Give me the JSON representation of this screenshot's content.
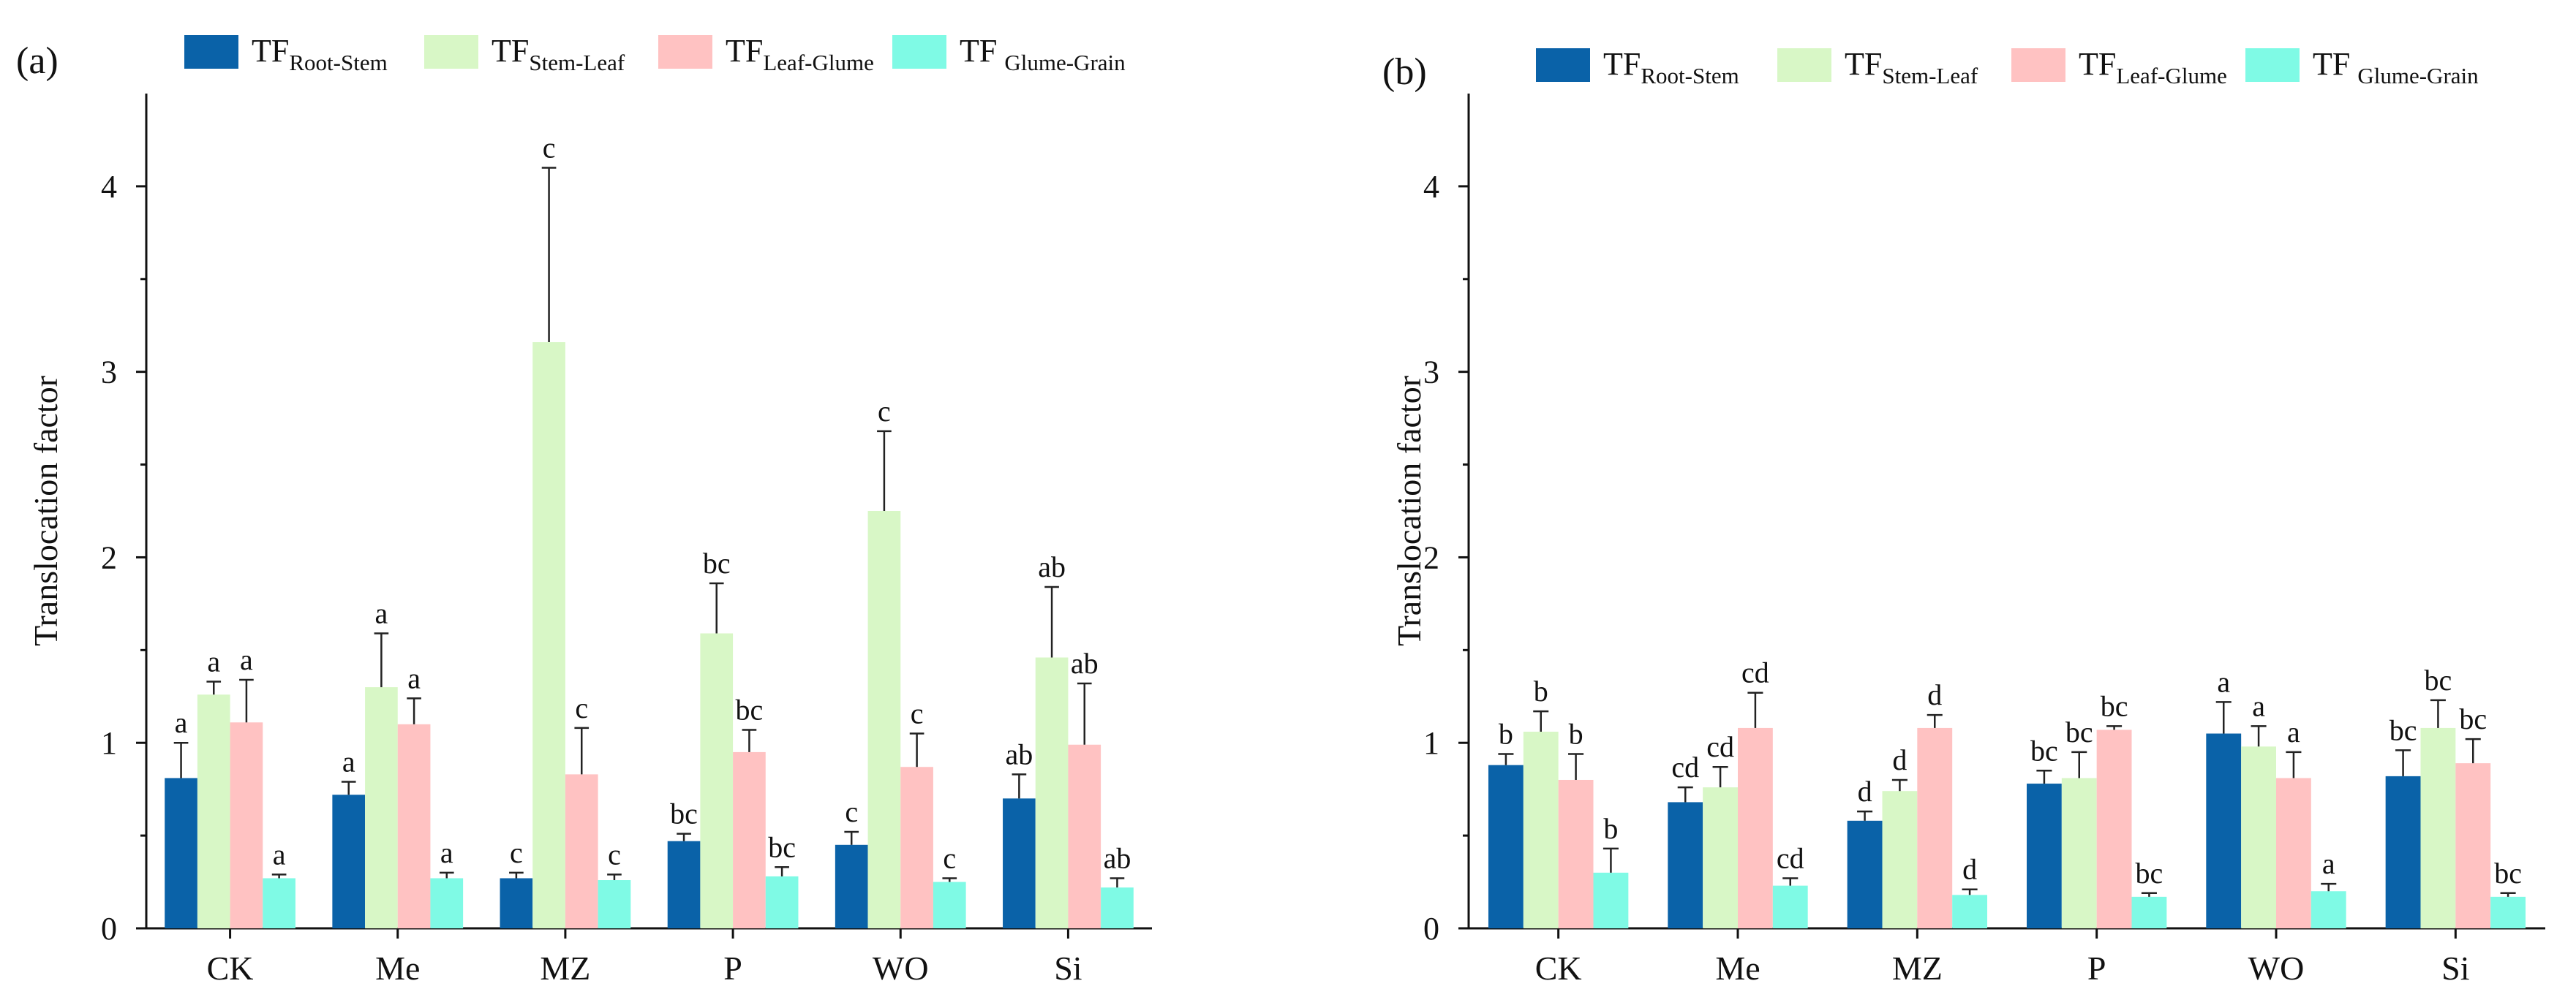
{
  "colors": {
    "root_stem": "#0A62A8",
    "stem_leaf": "#D8F7C6",
    "leaf_glume": "#FFC2C2",
    "glume_grain": "#7FFAE5",
    "axis": "#111111"
  },
  "chart_data": [
    {
      "type": "bar",
      "panel_label": "(a)",
      "ylabel": "Translocation factor",
      "xlabel": "",
      "ylim": [
        0,
        4.5
      ],
      "yticks": [
        "0",
        "1",
        "2",
        "3",
        "4"
      ],
      "categories": [
        "CK",
        "Me",
        "MZ",
        "P",
        "WO",
        "Si"
      ],
      "legend": [
        {
          "prefix": "TF",
          "sub": "Root-Stem",
          "color_key": "root_stem"
        },
        {
          "prefix": "TF",
          "sub": "Stem-Leaf",
          "color_key": "stem_leaf"
        },
        {
          "prefix": "TF",
          "sub": "Leaf-Glume",
          "color_key": "leaf_glume"
        },
        {
          "prefix": "TF",
          "sub": "Glume-Grain",
          "color_key": "glume_grain"
        }
      ],
      "series": [
        {
          "name": "TF Root-Stem",
          "color_key": "root_stem",
          "values": [
            0.81,
            0.72,
            0.27,
            0.47,
            0.45,
            0.7
          ],
          "errors": [
            0.19,
            0.07,
            0.03,
            0.04,
            0.07,
            0.13
          ],
          "labels": [
            "a",
            "a",
            "c",
            "bc",
            "c",
            "ab"
          ]
        },
        {
          "name": "TF Stem-Leaf",
          "color_key": "stem_leaf",
          "values": [
            1.26,
            1.3,
            3.16,
            1.59,
            2.25,
            1.46
          ],
          "errors": [
            0.07,
            0.29,
            0.94,
            0.27,
            0.43,
            0.38
          ],
          "labels": [
            "a",
            "a",
            "c",
            "bc",
            "c",
            "ab"
          ]
        },
        {
          "name": "TF Leaf-Glume",
          "color_key": "leaf_glume",
          "values": [
            1.11,
            1.1,
            0.83,
            0.95,
            0.87,
            0.99
          ],
          "errors": [
            0.23,
            0.14,
            0.25,
            0.12,
            0.18,
            0.33
          ],
          "labels": [
            "a",
            "a",
            "c",
            "bc",
            "c",
            "ab"
          ]
        },
        {
          "name": "TF Glume-Grain",
          "color_key": "glume_grain",
          "values": [
            0.27,
            0.27,
            0.26,
            0.28,
            0.25,
            0.22
          ],
          "errors": [
            0.02,
            0.03,
            0.03,
            0.05,
            0.02,
            0.05
          ],
          "labels": [
            "a",
            "a",
            "c",
            "bc",
            "c",
            "ab"
          ]
        }
      ]
    },
    {
      "type": "bar",
      "panel_label": "(b)",
      "ylabel": "Translocation factor",
      "xlabel": "",
      "ylim": [
        0,
        4.5
      ],
      "yticks": [
        "0",
        "1",
        "2",
        "3",
        "4"
      ],
      "categories": [
        "CK",
        "Me",
        "MZ",
        "P",
        "WO",
        "Si"
      ],
      "legend": [
        {
          "prefix": "TF",
          "sub": "Root-Stem",
          "color_key": "root_stem"
        },
        {
          "prefix": "TF",
          "sub": "Stem-Leaf",
          "color_key": "stem_leaf"
        },
        {
          "prefix": "TF",
          "sub": "Leaf-Glume",
          "color_key": "leaf_glume"
        },
        {
          "prefix": "TF",
          "sub": "Glume-Grain",
          "color_key": "glume_grain"
        }
      ],
      "series": [
        {
          "name": "TF Root-Stem",
          "color_key": "root_stem",
          "values": [
            0.88,
            0.68,
            0.58,
            0.78,
            1.05,
            0.82
          ],
          "errors": [
            0.06,
            0.08,
            0.05,
            0.07,
            0.17,
            0.14
          ],
          "labels": [
            "b",
            "cd",
            "d",
            "bc",
            "a",
            "bc"
          ]
        },
        {
          "name": "TF Stem-Leaf",
          "color_key": "stem_leaf",
          "values": [
            1.06,
            0.76,
            0.74,
            0.81,
            0.98,
            1.08
          ],
          "errors": [
            0.11,
            0.11,
            0.06,
            0.14,
            0.11,
            0.15
          ],
          "labels": [
            "b",
            "cd",
            "d",
            "bc",
            "a",
            "bc"
          ]
        },
        {
          "name": "TF Leaf-Glume",
          "color_key": "leaf_glume",
          "values": [
            0.8,
            1.08,
            1.08,
            1.07,
            0.81,
            0.89
          ],
          "errors": [
            0.14,
            0.19,
            0.07,
            0.02,
            0.14,
            0.13
          ],
          "labels": [
            "b",
            "cd",
            "d",
            "bc",
            "a",
            "bc"
          ]
        },
        {
          "name": "TF Glume-Grain",
          "color_key": "glume_grain",
          "values": [
            0.3,
            0.23,
            0.18,
            0.17,
            0.2,
            0.17
          ],
          "errors": [
            0.13,
            0.04,
            0.03,
            0.02,
            0.04,
            0.02
          ],
          "labels": [
            "b",
            "cd",
            "d",
            "bc",
            "a",
            "bc"
          ]
        }
      ]
    }
  ]
}
